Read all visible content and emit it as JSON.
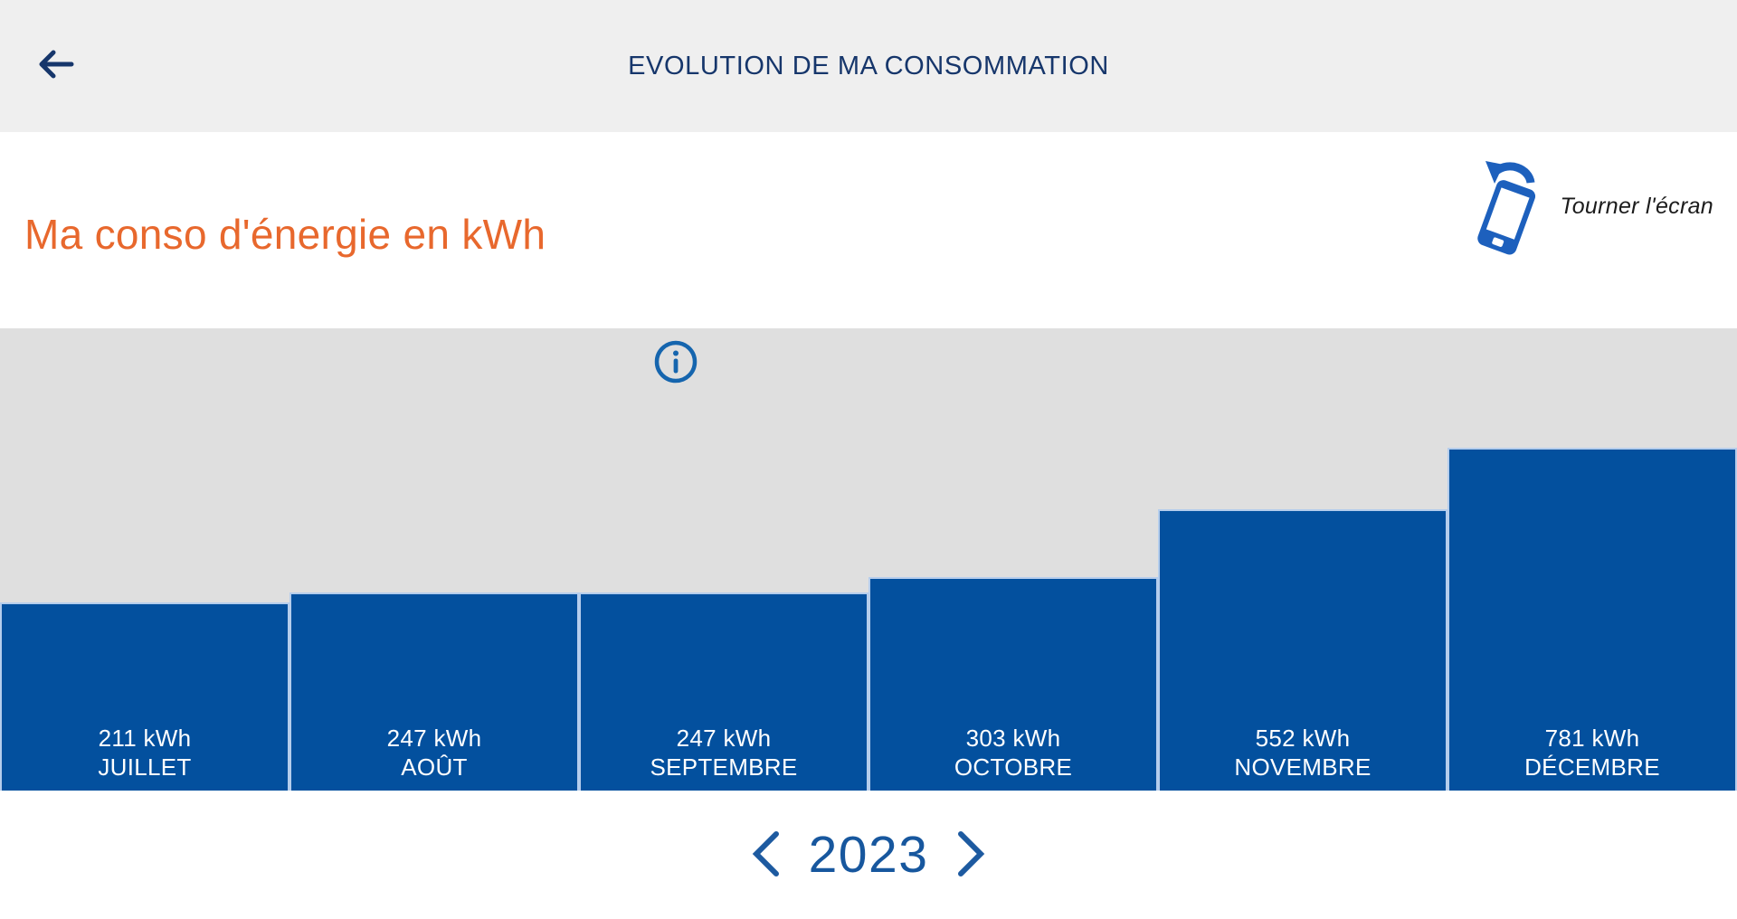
{
  "header": {
    "title": "EVOLUTION DE MA CONSOMMATION"
  },
  "page": {
    "title": "Ma conso d'énergie en kWh",
    "rotate_hint": "Tourner l'écran"
  },
  "chart_data": {
    "type": "bar",
    "title": "Ma conso d'énergie en kWh",
    "unit": "kWh",
    "categories": [
      "JUILLET",
      "AOÛT",
      "SEPTEMBRE",
      "OCTOBRE",
      "NOVEMBRE",
      "DÉCEMBRE"
    ],
    "values": [
      211,
      247,
      247,
      303,
      552,
      781
    ],
    "value_labels": [
      "211 kWh",
      "247 kWh",
      "247 kWh",
      "303 kWh",
      "552 kWh",
      "781 kWh"
    ],
    "label_position": "inside-bottom",
    "axes_visible": false,
    "grid": false,
    "legend": false,
    "bar_color": "#03509e",
    "bar_border_color": "#b5cdec",
    "plot_background": "#dfdfdf"
  },
  "year_nav": {
    "year": "2023"
  },
  "colors": {
    "appbar_background": "#efefef",
    "navy": "#16366b",
    "accent_orange": "#e8682d",
    "info_blue": "#1565ae",
    "phone_icon_blue": "#1d60bd",
    "year_blue": "#17579e"
  }
}
